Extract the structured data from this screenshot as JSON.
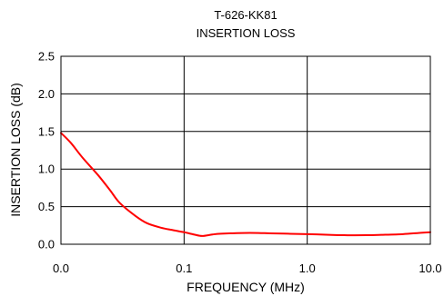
{
  "chart_data": {
    "type": "line",
    "title": "T-626-KK81",
    "subtitle": "INSERTION LOSS",
    "xlabel": "FREQUENCY (MHz)",
    "ylabel": "INSERTION LOSS (dB)",
    "x_scale": "log",
    "xlim": [
      0.01,
      10.0
    ],
    "ylim": [
      0,
      2.5
    ],
    "x_tick_values": [
      0.01,
      0.1,
      1.0,
      10.0
    ],
    "x_tick_labels": [
      "0.0",
      "0.1",
      "1.0",
      "10.0"
    ],
    "y_tick_values": [
      0,
      0.5,
      1.0,
      1.5,
      2.0,
      2.5
    ],
    "y_tick_labels": [
      "0.0",
      "0.5",
      "1.0",
      "1.5",
      "2.0",
      "2.5"
    ],
    "grid": true,
    "series": [
      {
        "color": "#ff0000",
        "x": [
          0.01,
          0.012,
          0.015,
          0.02,
          0.025,
          0.03,
          0.04,
          0.05,
          0.065,
          0.08,
          0.1,
          0.12,
          0.14,
          0.17,
          0.2,
          0.3,
          0.4,
          0.5,
          0.7,
          1.0,
          1.5,
          2.0,
          3.0,
          4.0,
          6.0,
          8.0,
          10.0
        ],
        "y": [
          1.48,
          1.35,
          1.15,
          0.92,
          0.72,
          0.55,
          0.38,
          0.28,
          0.22,
          0.19,
          0.16,
          0.13,
          0.11,
          0.13,
          0.14,
          0.15,
          0.15,
          0.145,
          0.14,
          0.135,
          0.125,
          0.12,
          0.12,
          0.125,
          0.135,
          0.15,
          0.16
        ]
      }
    ]
  }
}
